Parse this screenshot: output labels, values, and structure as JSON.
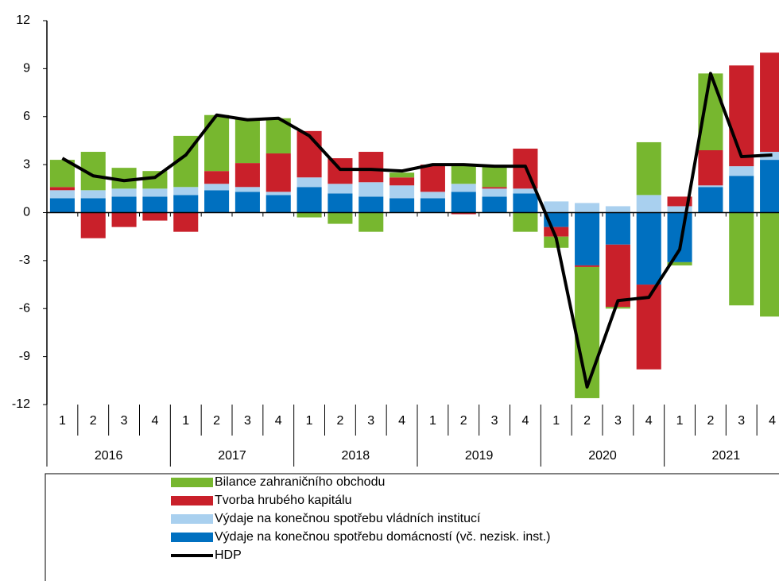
{
  "chart_data": {
    "type": "bar",
    "stacked": true,
    "categories": [
      "1",
      "2",
      "3",
      "4",
      "1",
      "2",
      "3",
      "4",
      "1",
      "2",
      "3",
      "4",
      "1",
      "2",
      "3",
      "4",
      "1",
      "2",
      "3",
      "4",
      "1",
      "2",
      "3",
      "4"
    ],
    "years": [
      "2016",
      "2017",
      "2018",
      "2019",
      "2020",
      "2021"
    ],
    "ylim": [
      -12,
      12
    ],
    "yticks": [
      -12,
      -9,
      -6,
      -3,
      0,
      3,
      6,
      9,
      12
    ],
    "series": [
      {
        "name": "Výdaje na konečnou spotřebu domácností (vč. nezisk. inst.)",
        "color": "#0070c0",
        "values": [
          0.9,
          0.9,
          1.0,
          1.0,
          1.1,
          1.4,
          1.3,
          1.1,
          1.6,
          1.2,
          1.0,
          0.9,
          0.9,
          1.3,
          1.0,
          1.2,
          -0.9,
          -3.3,
          -2.0,
          -4.5,
          -3.1,
          1.6,
          2.3,
          3.3
        ]
      },
      {
        "name": "Výdaje na konečnou spotřebu vládních institucí",
        "color": "#a9d0ef",
        "values": [
          0.5,
          0.5,
          0.5,
          0.5,
          0.5,
          0.4,
          0.3,
          0.2,
          0.6,
          0.6,
          0.9,
          0.8,
          0.4,
          0.5,
          0.5,
          0.3,
          0.7,
          0.6,
          0.4,
          1.1,
          0.4,
          0.1,
          0.6,
          0.5
        ]
      },
      {
        "name": "Tvorba hrubého kapitálu",
        "color": "#c9202a",
        "values": [
          0.2,
          -1.6,
          -0.9,
          -0.5,
          -1.2,
          0.8,
          1.5,
          2.4,
          2.9,
          1.6,
          1.9,
          0.5,
          1.7,
          -0.1,
          0.1,
          2.5,
          -0.6,
          -0.1,
          -3.9,
          -5.3,
          0.6,
          2.2,
          6.3,
          6.2
        ]
      },
      {
        "name": "Bilance zahraničního obchodu",
        "color": "#77b72f",
        "values": [
          1.7,
          2.4,
          1.3,
          1.1,
          3.2,
          3.5,
          2.8,
          2.2,
          -0.3,
          -0.7,
          -1.2,
          0.3,
          0.0,
          1.2,
          1.3,
          -1.2,
          -0.7,
          -8.2,
          -0.1,
          3.3,
          -0.2,
          4.8,
          -5.8,
          -6.5
        ]
      }
    ],
    "line": {
      "name": "HDP",
      "color": "#000000",
      "values": [
        3.4,
        2.3,
        2.0,
        2.2,
        3.6,
        6.1,
        5.8,
        5.9,
        4.8,
        2.7,
        2.7,
        2.6,
        3.0,
        3.0,
        2.9,
        2.9,
        -1.6,
        -10.9,
        -5.5,
        -5.3,
        -2.3,
        8.7,
        3.5,
        3.6
      ]
    }
  }
}
